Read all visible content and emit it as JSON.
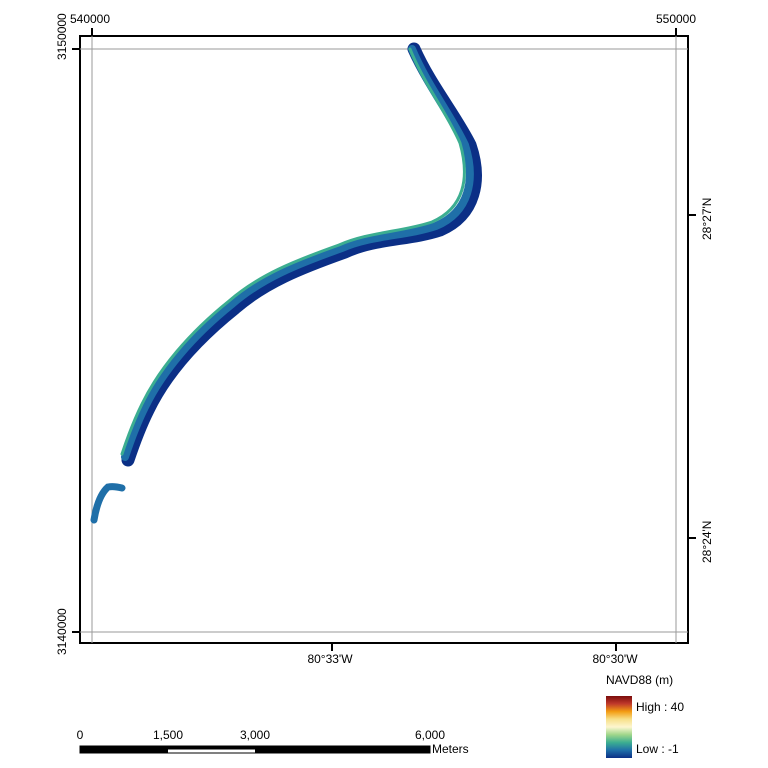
{
  "map": {
    "projected_coords": {
      "x_left": "540000",
      "x_right": "550000",
      "y_top": "3150000",
      "y_bottom": "3140000"
    },
    "geographic_coords": {
      "lat_upper": "28°27'N",
      "lat_lower": "28°24'N",
      "lon_left": "80°33'W",
      "lon_right": "80°30'W"
    }
  },
  "legend": {
    "title": "NAVD88 (m)",
    "high_label": "High : 40",
    "low_label": "Low : -1",
    "colors": [
      "#7a0c0c",
      "#c0392b",
      "#f39c12",
      "#f7e08a",
      "#fdf6cf",
      "#9fd68a",
      "#3cae91",
      "#1f6fa8",
      "#0b2f86"
    ]
  },
  "scale_bar": {
    "ticks": [
      "0",
      "1,500",
      "3,000",
      "6,000"
    ],
    "unit": "Meters"
  },
  "river": {
    "colors": {
      "deep": "#0b2f86",
      "mid": "#1f6fa8",
      "shallow": "#3cae91",
      "bank": "#9fd68a"
    }
  }
}
